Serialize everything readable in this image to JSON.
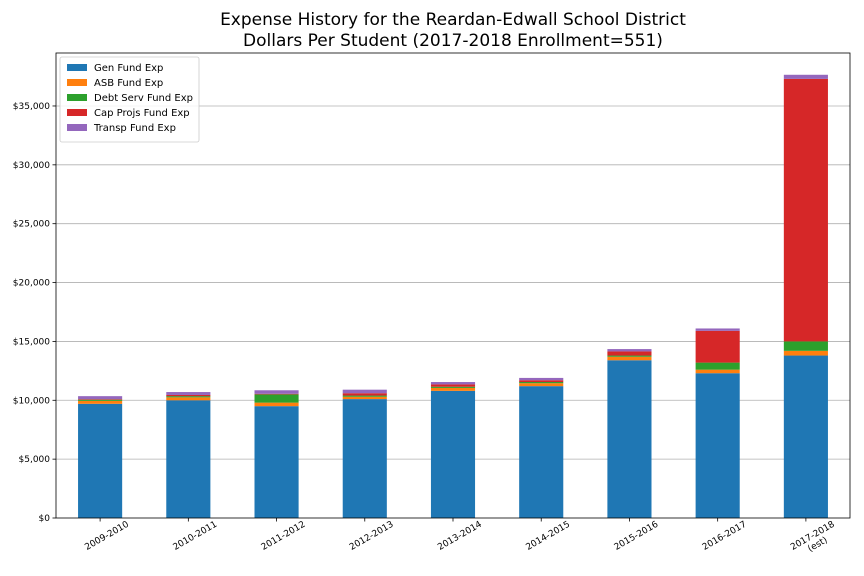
{
  "chart_data": {
    "type": "bar",
    "stacked": true,
    "title": "Expense History for the Reardan-Edwall School District",
    "subtitle": "Dollars Per Student (2017-2018 Enrollment=551)",
    "xlabel": "",
    "ylabel": "",
    "categories": [
      "2009-2010",
      "2010-2011",
      "2011-2012",
      "2012-2013",
      "2013-2014",
      "2014-2015",
      "2015-2016",
      "2016-2017",
      "2017-2018\n(est)"
    ],
    "ylim": [
      0,
      39500
    ],
    "yticks": [
      0,
      5000,
      10000,
      15000,
      20000,
      25000,
      30000,
      35000
    ],
    "ytick_labels": [
      "$0",
      "$5,000",
      "$10,000",
      "$15,000",
      "$20,000",
      "$25,000",
      "$30,000",
      "$35,000"
    ],
    "grid": "y",
    "legend_position": "top-left",
    "series": [
      {
        "name": "Gen Fund Exp",
        "color": "#1f77b4",
        "values": [
          9700,
          10000,
          9500,
          10100,
          10800,
          11200,
          13400,
          12300,
          13800
        ]
      },
      {
        "name": "ASB Fund Exp",
        "color": "#ff7f0e",
        "values": [
          250,
          250,
          300,
          200,
          250,
          250,
          300,
          300,
          400
        ]
      },
      {
        "name": "Debt Serv Fund Exp",
        "color": "#2ca02c",
        "values": [
          100,
          100,
          700,
          100,
          100,
          100,
          100,
          600,
          800
        ]
      },
      {
        "name": "Cap Projs Fund Exp",
        "color": "#d62728",
        "values": [
          50,
          100,
          50,
          200,
          200,
          150,
          350,
          2700,
          22300
        ]
      },
      {
        "name": "Transp Fund Exp",
        "color": "#9467bd",
        "values": [
          250,
          250,
          300,
          300,
          200,
          200,
          200,
          200,
          350
        ]
      }
    ]
  }
}
